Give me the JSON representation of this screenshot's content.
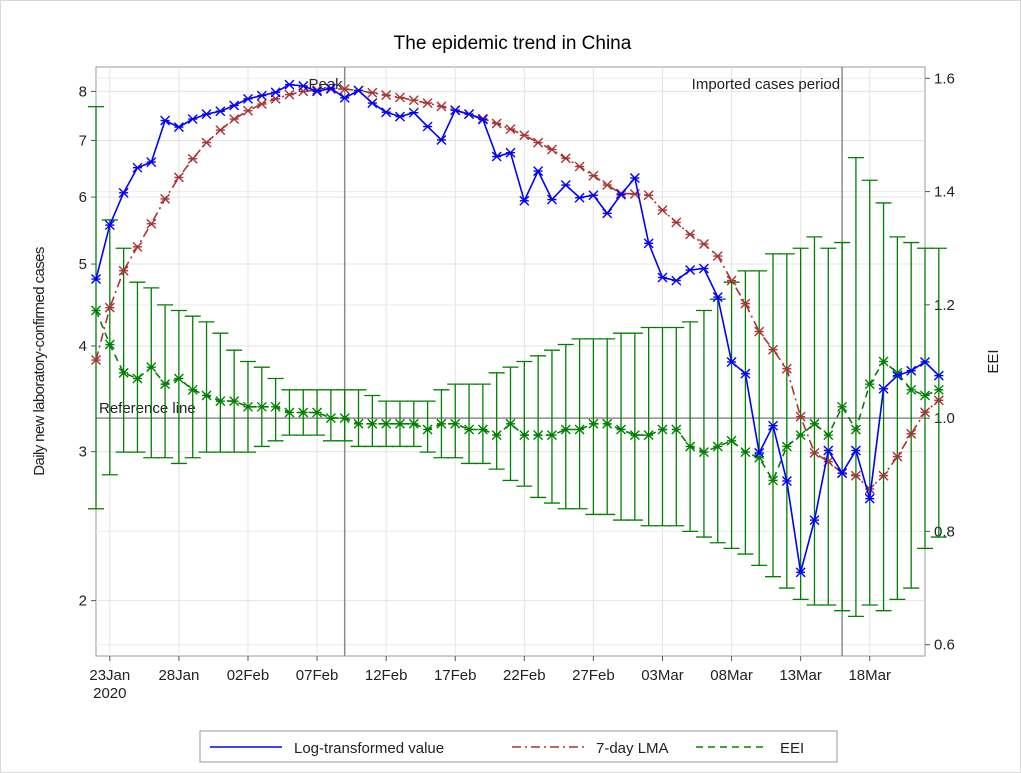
{
  "chart_data": {
    "type": "line",
    "title": "The epidemic trend in China",
    "ylabel": "Daily new laboratory-confirmed cases",
    "y2label": "EEI",
    "xlabel": "",
    "x_start_date": "2020-01-22",
    "x_tick_labels": [
      "23Jan\n2020",
      "28Jan",
      "02Feb",
      "07Feb",
      "12Feb",
      "17Feb",
      "22Feb",
      "27Feb",
      "03Mar",
      "08Mar",
      "13Mar",
      "18Mar"
    ],
    "x_tick_days": [
      1,
      6,
      11,
      16,
      21,
      26,
      31,
      36,
      41,
      46,
      51,
      56
    ],
    "xlim_days": [
      0,
      60
    ],
    "y_scale": "log-transformed",
    "ylim": [
      1.72,
      8.55
    ],
    "y_ticks": [
      2,
      3,
      4,
      5,
      6,
      7,
      8
    ],
    "y2lim": [
      0.58,
      1.62
    ],
    "y2_ticks": [
      0.6,
      0.8,
      1.0,
      1.2,
      1.4,
      1.6
    ],
    "grid": true,
    "legend_position": "bottom",
    "annotations": {
      "peak_label": "Peak",
      "peak_day": 18,
      "imported_label": "Imported cases period",
      "imported_day": 54,
      "reference_label": "Reference line",
      "reference_value": 1.0
    },
    "series": [
      {
        "name": "Log-transformed value",
        "color": "#0000ff",
        "axis": "left",
        "values": [
          4.8,
          5.56,
          6.07,
          6.5,
          6.6,
          7.39,
          7.26,
          7.42,
          7.52,
          7.58,
          7.7,
          7.84,
          7.91,
          7.98,
          8.15,
          8.12,
          8.0,
          8.07,
          7.86,
          8.02,
          7.75,
          7.56,
          7.47,
          7.55,
          7.27,
          7.01,
          7.6,
          7.52,
          7.41,
          6.7,
          6.77,
          5.94,
          6.44,
          5.96,
          6.2,
          5.99,
          6.03,
          5.74,
          6.04,
          6.32,
          5.29,
          4.82,
          4.78,
          4.92,
          4.94,
          4.57,
          3.83,
          3.71,
          2.99,
          3.22,
          2.77,
          2.16,
          2.49,
          3.01,
          2.83,
          3.01,
          2.64,
          3.56,
          3.69,
          3.74,
          3.83,
          3.69
        ]
      },
      {
        "name": "7-day LMA",
        "color": "#aa3333",
        "axis": "left",
        "values": [
          3.85,
          4.44,
          4.91,
          5.24,
          5.58,
          5.97,
          6.33,
          6.66,
          6.96,
          7.2,
          7.42,
          7.59,
          7.73,
          7.84,
          7.93,
          8.0,
          8.03,
          8.05,
          8.05,
          8.02,
          7.97,
          7.92,
          7.87,
          7.81,
          7.75,
          7.68,
          7.6,
          7.52,
          7.43,
          7.33,
          7.22,
          7.1,
          6.96,
          6.83,
          6.67,
          6.52,
          6.36,
          6.2,
          6.06,
          6.05,
          6.03,
          5.79,
          5.6,
          5.42,
          5.28,
          5.11,
          4.78,
          4.49,
          4.16,
          3.96,
          3.76,
          3.3,
          2.99,
          2.92,
          2.83,
          2.81,
          2.71,
          2.81,
          2.96,
          3.15,
          3.34,
          3.45
        ]
      },
      {
        "name": "EEI",
        "color": "#008000",
        "axis": "right",
        "values": [
          1.19,
          1.13,
          1.08,
          1.07,
          1.09,
          1.06,
          1.07,
          1.05,
          1.04,
          1.03,
          1.03,
          1.02,
          1.02,
          1.02,
          1.01,
          1.01,
          1.01,
          1.0,
          1.0,
          0.99,
          0.99,
          0.99,
          0.99,
          0.99,
          0.98,
          0.99,
          0.99,
          0.98,
          0.98,
          0.97,
          0.99,
          0.97,
          0.97,
          0.97,
          0.98,
          0.98,
          0.99,
          0.99,
          0.98,
          0.97,
          0.97,
          0.98,
          0.98,
          0.95,
          0.94,
          0.95,
          0.96,
          0.94,
          0.93,
          0.89,
          0.95,
          0.97,
          0.99,
          0.97,
          1.02,
          0.98,
          1.06,
          1.1,
          1.08,
          1.05,
          1.04,
          1.05
        ],
        "ci_lower": [
          0.84,
          0.9,
          0.94,
          0.94,
          0.93,
          0.93,
          0.92,
          0.93,
          0.94,
          0.94,
          0.94,
          0.94,
          0.95,
          0.96,
          0.97,
          0.97,
          0.97,
          0.96,
          0.96,
          0.95,
          0.95,
          0.95,
          0.95,
          0.95,
          0.94,
          0.93,
          0.93,
          0.92,
          0.92,
          0.91,
          0.89,
          0.88,
          0.86,
          0.85,
          0.84,
          0.84,
          0.83,
          0.83,
          0.82,
          0.82,
          0.81,
          0.81,
          0.81,
          0.8,
          0.79,
          0.78,
          0.77,
          0.76,
          0.74,
          0.72,
          0.7,
          0.68,
          0.67,
          0.67,
          0.66,
          0.65,
          0.67,
          0.66,
          0.68,
          0.7,
          0.77,
          0.79
        ],
        "ci_upper": [
          1.55,
          1.35,
          1.3,
          1.24,
          1.23,
          1.2,
          1.19,
          1.18,
          1.17,
          1.15,
          1.12,
          1.1,
          1.09,
          1.07,
          1.05,
          1.05,
          1.05,
          1.05,
          1.05,
          1.05,
          1.04,
          1.03,
          1.03,
          1.03,
          1.03,
          1.05,
          1.06,
          1.06,
          1.06,
          1.08,
          1.09,
          1.1,
          1.11,
          1.12,
          1.13,
          1.14,
          1.14,
          1.14,
          1.15,
          1.15,
          1.16,
          1.16,
          1.16,
          1.17,
          1.19,
          1.21,
          1.24,
          1.26,
          1.26,
          1.29,
          1.29,
          1.3,
          1.32,
          1.3,
          1.31,
          1.46,
          1.42,
          1.38,
          1.32,
          1.31,
          1.3,
          1.3
        ]
      }
    ]
  }
}
